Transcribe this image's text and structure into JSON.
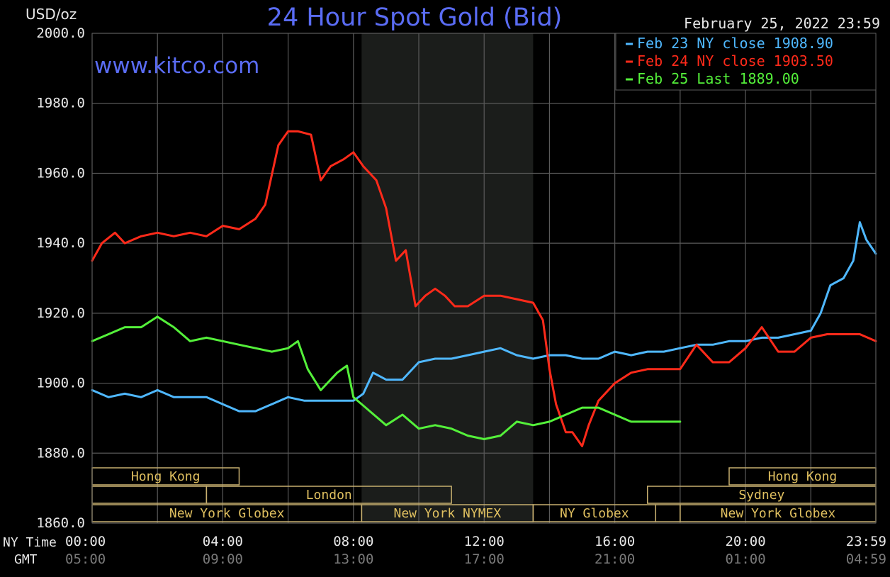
{
  "header": {
    "title": "24 Hour Spot Gold (Bid)",
    "unit": "USD/oz",
    "date": "February 25, 2022 23:59",
    "site": "www.kitco.com"
  },
  "legend": {
    "placement": "top-right",
    "items": [
      {
        "label": "Feb 23 NY close 1908.90",
        "color": "#4fb8ff"
      },
      {
        "label": "Feb 24 NY close 1903.50",
        "color": "#ff2a1a"
      },
      {
        "label": "Feb 25 Last 1889.00",
        "color": "#54f03a"
      }
    ]
  },
  "axes": {
    "row_label_ny": "NY Time",
    "row_label_gmt": "GMT",
    "ny_ticks": [
      "00:00",
      "04:00",
      "08:00",
      "12:00",
      "16:00",
      "20:00",
      "23:59"
    ],
    "gmt_ticks": [
      "05:00",
      "09:00",
      "13:00",
      "17:00",
      "21:00",
      "01:00",
      "04:59"
    ],
    "y_ticks": [
      "2000.0",
      "1980.0",
      "1960.0",
      "1940.0",
      "1920.0",
      "1900.0",
      "1880.0",
      "1860.0"
    ]
  },
  "sessions": {
    "row1": [
      {
        "label": "Hong Kong",
        "start": 0,
        "end": 4.5
      },
      {
        "label": "Hong Kong",
        "start": 19.5,
        "end": 23.99
      }
    ],
    "row2": [
      {
        "label": "",
        "start": 0,
        "end": 3.5
      },
      {
        "label": "London",
        "start": 3.5,
        "end": 11
      },
      {
        "label": "Sydney",
        "start": 17,
        "end": 23.99
      }
    ],
    "row3": [
      {
        "label": "New York Globex",
        "start": 0,
        "end": 8.25
      },
      {
        "label": "New York NYMEX",
        "start": 8.25,
        "end": 13.5
      },
      {
        "label": "NY Globex",
        "start": 13.5,
        "end": 17.25
      },
      {
        "label": "",
        "start": 17.25,
        "end": 18
      },
      {
        "label": "New York Globex",
        "start": 18,
        "end": 23.99
      }
    ]
  },
  "chart_data": {
    "type": "line",
    "title": "24 Hour Spot Gold (Bid)",
    "ylabel": "USD/oz",
    "xlabel": "NY Time",
    "xlim": [
      0,
      23.99
    ],
    "ylim": [
      1860,
      2000
    ],
    "grid": true,
    "legend_placement": "top-right",
    "shaded_region": {
      "start": 8.25,
      "end": 13.5
    },
    "series": [
      {
        "name": "Feb 23 NY close 1908.90",
        "color": "#4fb8ff",
        "x": [
          0,
          0.5,
          1,
          1.5,
          2,
          2.5,
          3,
          3.5,
          4,
          4.5,
          5,
          5.5,
          6,
          6.5,
          7,
          7.5,
          8,
          8.3,
          8.6,
          9,
          9.5,
          10,
          10.5,
          11,
          11.5,
          12,
          12.5,
          13,
          13.5,
          14,
          14.5,
          15,
          15.5,
          16,
          16.5,
          17,
          17.5,
          18,
          18.5,
          19,
          19.5,
          20,
          20.5,
          21,
          21.5,
          22,
          22.3,
          22.6,
          23,
          23.3,
          23.5,
          23.7,
          23.99
        ],
        "y": [
          1898,
          1896,
          1897,
          1896,
          1898,
          1896,
          1896,
          1896,
          1894,
          1892,
          1892,
          1894,
          1896,
          1895,
          1895,
          1895,
          1895,
          1897,
          1903,
          1901,
          1901,
          1906,
          1907,
          1907,
          1908,
          1909,
          1910,
          1908,
          1907,
          1908,
          1908,
          1907,
          1907,
          1909,
          1908,
          1909,
          1909,
          1910,
          1911,
          1911,
          1912,
          1912,
          1913,
          1913,
          1914,
          1915,
          1920,
          1928,
          1930,
          1935,
          1946,
          1941,
          1937
        ]
      },
      {
        "name": "Feb 24 NY close 1903.50",
        "color": "#ff2a1a",
        "x": [
          0,
          0.3,
          0.7,
          1,
          1.5,
          2,
          2.5,
          3,
          3.5,
          4,
          4.5,
          5,
          5.3,
          5.7,
          6,
          6.3,
          6.7,
          7,
          7.3,
          7.7,
          8,
          8.3,
          8.7,
          9,
          9.3,
          9.6,
          9.9,
          10.2,
          10.5,
          10.8,
          11.1,
          11.5,
          12,
          12.5,
          13,
          13.5,
          13.8,
          14,
          14.2,
          14.5,
          14.7,
          15,
          15.2,
          15.5,
          16,
          16.5,
          17,
          17.5,
          18,
          18.5,
          19,
          19.5,
          20,
          20.5,
          21,
          21.5,
          22,
          22.5,
          23,
          23.5,
          23.99
        ],
        "y": [
          1935,
          1940,
          1943,
          1940,
          1942,
          1943,
          1942,
          1943,
          1942,
          1945,
          1944,
          1947,
          1951,
          1968,
          1972,
          1972,
          1971,
          1958,
          1962,
          1964,
          1966,
          1962,
          1958,
          1950,
          1935,
          1938,
          1922,
          1925,
          1927,
          1925,
          1922,
          1922,
          1925,
          1925,
          1924,
          1923,
          1918,
          1904,
          1894,
          1886,
          1886,
          1882,
          1888,
          1895,
          1900,
          1903,
          1904,
          1904,
          1904,
          1911,
          1906,
          1906,
          1910,
          1916,
          1909,
          1909,
          1913,
          1914,
          1914,
          1914,
          1912
        ]
      },
      {
        "name": "Feb 25 Last 1889.00",
        "color": "#54f03a",
        "x": [
          0,
          0.5,
          1,
          1.5,
          2,
          2.5,
          3,
          3.5,
          4,
          4.5,
          5,
          5.5,
          6,
          6.3,
          6.6,
          7,
          7.5,
          7.8,
          8,
          8.5,
          9,
          9.5,
          10,
          10.5,
          11,
          11.5,
          12,
          12.5,
          13,
          13.5,
          14,
          14.5,
          15,
          15.5,
          16,
          16.5,
          17,
          17.5,
          18
        ],
        "y": [
          1912,
          1914,
          1916,
          1916,
          1919,
          1916,
          1912,
          1913,
          1912,
          1911,
          1910,
          1909,
          1910,
          1912,
          1904,
          1898,
          1903,
          1905,
          1896,
          1892,
          1888,
          1891,
          1887,
          1888,
          1887,
          1885,
          1884,
          1885,
          1889,
          1888,
          1889,
          1891,
          1893,
          1893,
          1891,
          1889,
          1889,
          1889,
          1889
        ]
      }
    ]
  }
}
